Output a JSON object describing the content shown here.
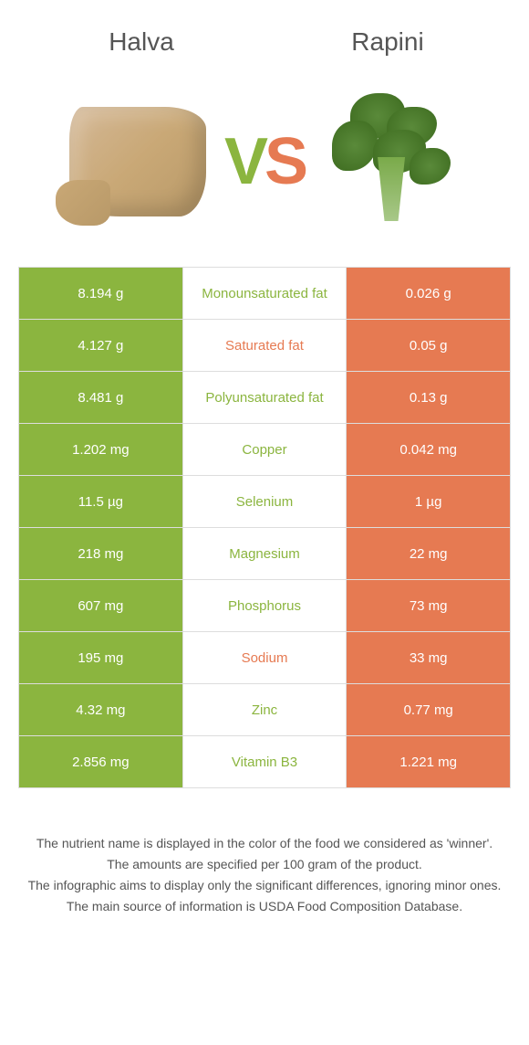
{
  "colors": {
    "green": "#8bb53f",
    "orange": "#e67a52",
    "mid_green_text": "#8bb53f",
    "mid_orange_text": "#e67a52"
  },
  "header": {
    "left_title": "Halva",
    "right_title": "Rapini",
    "vs_v": "V",
    "vs_s": "S"
  },
  "rows": [
    {
      "left": "8.194 g",
      "mid": "Monounsaturated fat",
      "right": "0.026 g",
      "winner": "left"
    },
    {
      "left": "4.127 g",
      "mid": "Saturated fat",
      "right": "0.05 g",
      "winner": "right"
    },
    {
      "left": "8.481 g",
      "mid": "Polyunsaturated fat",
      "right": "0.13 g",
      "winner": "left"
    },
    {
      "left": "1.202 mg",
      "mid": "Copper",
      "right": "0.042 mg",
      "winner": "left"
    },
    {
      "left": "11.5 µg",
      "mid": "Selenium",
      "right": "1 µg",
      "winner": "left"
    },
    {
      "left": "218 mg",
      "mid": "Magnesium",
      "right": "22 mg",
      "winner": "left"
    },
    {
      "left": "607 mg",
      "mid": "Phosphorus",
      "right": "73 mg",
      "winner": "left"
    },
    {
      "left": "195 mg",
      "mid": "Sodium",
      "right": "33 mg",
      "winner": "right"
    },
    {
      "left": "4.32 mg",
      "mid": "Zinc",
      "right": "0.77 mg",
      "winner": "left"
    },
    {
      "left": "2.856 mg",
      "mid": "Vitamin B3",
      "right": "1.221 mg",
      "winner": "left"
    }
  ],
  "footer": {
    "line1": "The nutrient name is displayed in the color of the food we considered as 'winner'.",
    "line2": "The amounts are specified per 100 gram of the product.",
    "line3": "The infographic aims to display only the significant differences, ignoring minor ones.",
    "line4": "The main source of information is USDA Food Composition Database."
  }
}
